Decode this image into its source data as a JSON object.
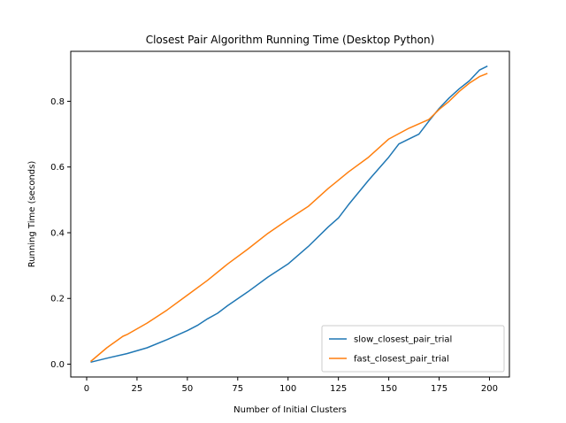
{
  "chart_data": {
    "type": "line",
    "title": "Closest Pair Algorithm Running Time (Desktop Python)",
    "xlabel": "Number of Initial Clusters",
    "ylabel": "Running Time (seconds)",
    "xlim": [
      -7.9,
      209.9
    ],
    "ylim": [
      -0.039,
      0.952
    ],
    "xticks": [
      0,
      25,
      50,
      75,
      100,
      125,
      150,
      175,
      200
    ],
    "yticks": [
      0.0,
      0.2,
      0.4,
      0.6,
      0.8
    ],
    "legend_location": "lower-right",
    "grid": false,
    "series": [
      {
        "name": "slow_closest_pair_trial",
        "color": "#1f77b4",
        "x": [
          2,
          10,
          20,
          30,
          40,
          50,
          55,
          60,
          65,
          70,
          80,
          90,
          100,
          110,
          120,
          125,
          130,
          140,
          145,
          150,
          155,
          160,
          165,
          170,
          175,
          180,
          185,
          190,
          195,
          199
        ],
        "y": [
          0.006,
          0.018,
          0.032,
          0.05,
          0.075,
          0.102,
          0.118,
          0.138,
          0.155,
          0.178,
          0.22,
          0.265,
          0.305,
          0.358,
          0.418,
          0.445,
          0.485,
          0.56,
          0.595,
          0.63,
          0.67,
          0.685,
          0.7,
          0.74,
          0.778,
          0.81,
          0.838,
          0.862,
          0.895,
          0.907
        ]
      },
      {
        "name": "fast_closest_pair_trial",
        "color": "#ff7f0e",
        "x": [
          2,
          10,
          18,
          20,
          30,
          40,
          50,
          60,
          70,
          80,
          90,
          100,
          110,
          120,
          125,
          130,
          140,
          150,
          160,
          170,
          175,
          180,
          185,
          190,
          195,
          199
        ],
        "y": [
          0.008,
          0.05,
          0.085,
          0.09,
          0.125,
          0.165,
          0.21,
          0.255,
          0.305,
          0.35,
          0.398,
          0.44,
          0.48,
          0.535,
          0.56,
          0.585,
          0.63,
          0.685,
          0.718,
          0.745,
          0.775,
          0.8,
          0.83,
          0.855,
          0.875,
          0.885
        ]
      }
    ]
  }
}
